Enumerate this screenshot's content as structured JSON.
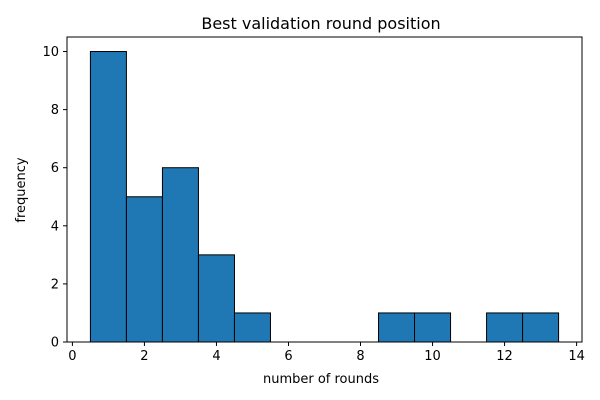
{
  "chart_data": {
    "type": "bar",
    "title": "Best validation round position",
    "xlabel": "number of rounds",
    "ylabel": "frequency",
    "xlim": [
      -0.15,
      14.15
    ],
    "ylim": [
      0,
      10.5
    ],
    "xticks": [
      0,
      2,
      4,
      6,
      8,
      10,
      12,
      14
    ],
    "yticks": [
      0,
      2,
      4,
      6,
      8,
      10
    ],
    "bin_width": 1,
    "bins": [
      {
        "center": 1,
        "count": 10
      },
      {
        "center": 2,
        "count": 5
      },
      {
        "center": 3,
        "count": 6
      },
      {
        "center": 4,
        "count": 3
      },
      {
        "center": 5,
        "count": 1
      },
      {
        "center": 6,
        "count": 0
      },
      {
        "center": 7,
        "count": 0
      },
      {
        "center": 8,
        "count": 0
      },
      {
        "center": 9,
        "count": 1
      },
      {
        "center": 10,
        "count": 1
      },
      {
        "center": 11,
        "count": 0
      },
      {
        "center": 12,
        "count": 1
      },
      {
        "center": 13,
        "count": 1
      }
    ],
    "bar_color": "#1f77b4",
    "edge_color": "#000000",
    "grid": false,
    "legend": "none"
  }
}
